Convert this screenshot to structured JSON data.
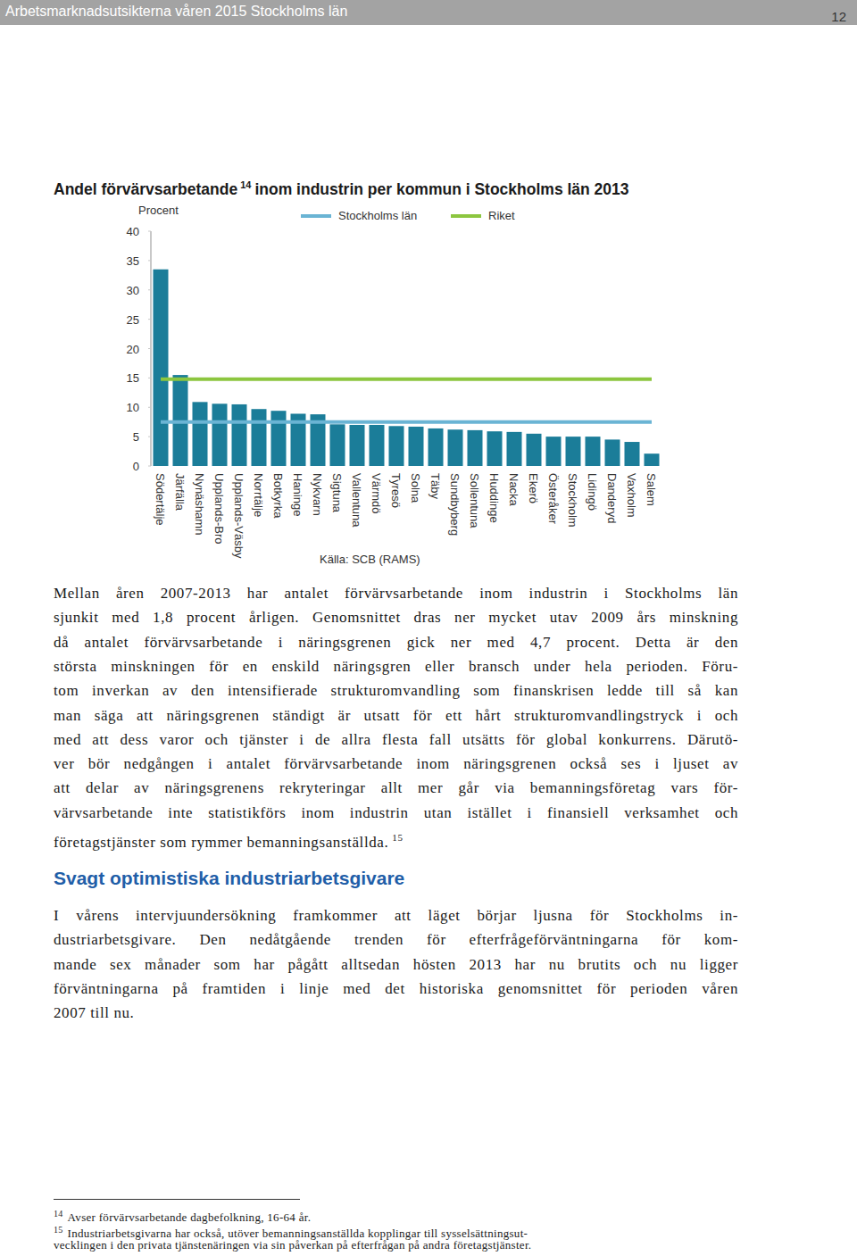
{
  "header": {
    "title": "Arbetsmarknadsutsikterna våren 2015 Stockholms län",
    "page_number": "12"
  },
  "chart_data": {
    "type": "bar",
    "title": "Andel förvärvsarbetande",
    "title_footnote": "14",
    "title_rest": "inom industrin per kommun i Stockholms län 2013",
    "y_label": "Procent",
    "source": "Källa: SCB (RAMS)",
    "categories": [
      "Södertälje",
      "Järfälla",
      "Nynäshamn",
      "Upplands-Bro",
      "Upplands-Väsby",
      "Norrtälje",
      "Botkyrka",
      "Haninge",
      "Nykvarn",
      "Sigtuna",
      "Vallentuna",
      "Värmdö",
      "Tyresö",
      "Solna",
      "Täby",
      "Sundbyberg",
      "Sollentuna",
      "Huddinge",
      "Nacka",
      "Ekerö",
      "Österåker",
      "Stockholm",
      "Lidingö",
      "Danderyd",
      "Vaxholm",
      "Salem"
    ],
    "values": [
      33.5,
      15.5,
      10.9,
      10.6,
      10.5,
      9.7,
      9.4,
      8.9,
      8.8,
      7.1,
      7.0,
      7.0,
      6.8,
      6.7,
      6.4,
      6.2,
      6.1,
      5.9,
      5.8,
      5.5,
      5.0,
      5.0,
      5.0,
      4.5,
      4.1,
      2.1
    ],
    "color": "#1b7d99",
    "series": [
      {
        "name": "Stockholms län",
        "type": "line",
        "color": "#6ab4d4",
        "values": [
          7.5,
          7.5,
          7.5,
          7.5,
          7.5,
          7.5,
          7.5,
          7.5,
          7.5,
          7.5,
          7.5,
          7.5,
          7.5,
          7.5,
          7.5,
          7.5,
          7.5,
          7.5,
          7.5,
          7.5,
          7.5,
          7.5,
          7.5,
          7.5,
          7.5,
          7.5
        ]
      },
      {
        "name": "Riket",
        "type": "line",
        "color": "#8cc63f",
        "values": [
          14.8,
          14.8,
          14.8,
          14.8,
          14.8,
          14.8,
          14.8,
          14.8,
          14.8,
          14.8,
          14.8,
          14.8,
          14.8,
          14.8,
          14.8,
          14.8,
          14.8,
          14.8,
          14.8,
          14.8,
          14.8,
          14.8,
          14.8,
          14.8,
          14.8,
          14.8
        ]
      }
    ],
    "ylim": [
      0,
      40
    ],
    "yticks": [
      0,
      5,
      10,
      15,
      20,
      25,
      30,
      35,
      40
    ],
    "grid": false,
    "legend": "top"
  },
  "body": {
    "paragraphs": [
      {
        "lines": [
          "Mellan åren 2007-2013 har antalet förvärvsarbetande inom industrin i Stockholms län",
          "sjunkit med 1,8 procent årligen. Genomsnittet dras ner mycket utav 2009 års minskning",
          "då antalet förvärvsarbetande i näringsgrenen gick ner med 4,7 procent. Detta är den",
          "största minskningen för en enskild näringsgren eller bransch under hela perioden. Föru-",
          "tom inverkan av den intensifierade strukturomvandling som finanskrisen ledde till så kan",
          "man säga att näringsgrenen ständigt är utsatt för ett hårt strukturomvandlingstryck i och",
          "med att dess varor och tjänster i de allra flesta fall utsätts för global konkurrens. Därutö-",
          "ver bör nedgången i antalet förvärvsarbetande inom näringsgrenen också ses i ljuset av",
          "att delar av näringsgrenens rekryteringar allt mer går via bemanningsföretag vars för-",
          "värvsarbetande inte statistikförs inom industrin utan istället i finansiell verksamhet och",
          "företagstjänster som rymmer bemanningsanställda."
        ],
        "footnote_ref": "15"
      },
      {
        "heading": "Svagt optimistiska industriarbetsgivare",
        "lines": [
          "I vårens intervjuundersökning framkommer att läget börjar ljusna för Stockholms in-",
          "dustriarbetsgivare. Den nedåtgående trenden för efterfrågeförväntningarna för kom-",
          "mande sex månader som har pågått alltsedan hösten 2013 har nu brutits och nu ligger",
          "förväntningarna på framtiden i linje med det historiska genomsnittet för perioden våren",
          "2007 till nu."
        ]
      }
    ]
  },
  "footnotes": [
    {
      "number": "14",
      "lines": [
        "Avser förvärvsarbetande dagbefolkning, 16-64 år."
      ]
    },
    {
      "number": "15",
      "lines": [
        "Industriarbetsgivarna har också, utöver bemanningsanställda kopplingar till sysselsättningsut-",
        "vecklingen i den privata tjänstenäringen via sin påverkan på efterfrågan på andra företagstjänster."
      ]
    }
  ]
}
